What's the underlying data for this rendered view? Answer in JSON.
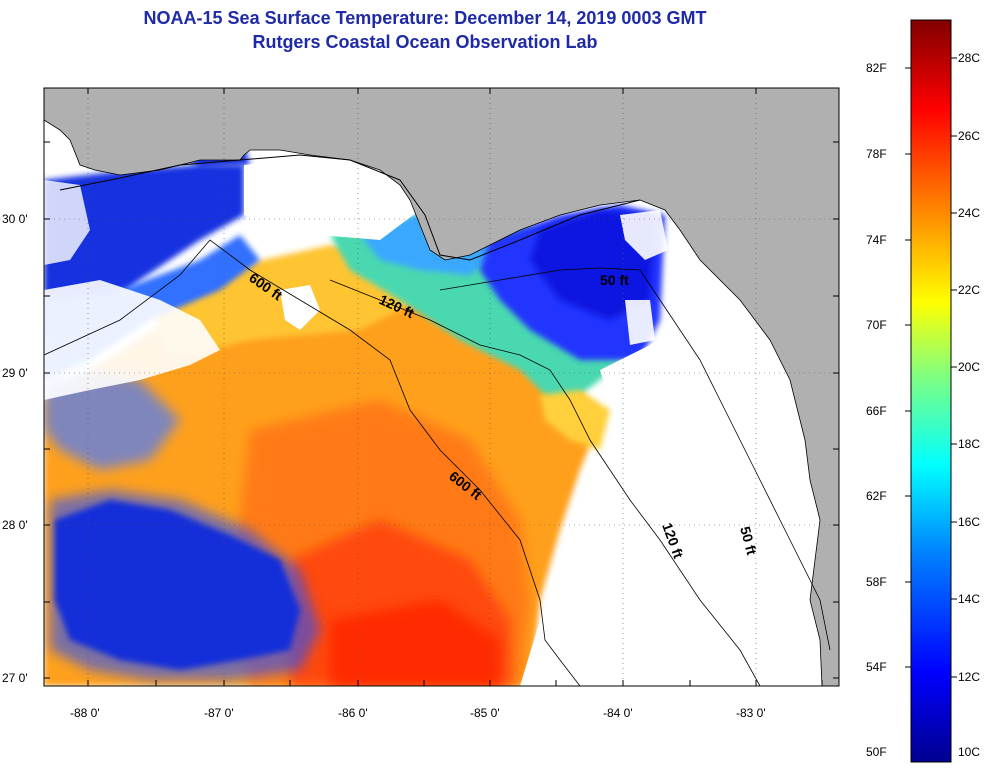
{
  "title": {
    "line1": "NOAA-15 Sea Surface Temperature:  December 14, 2019 0003 GMT",
    "line2": "Rutgers Coastal Ocean Observation Lab"
  },
  "axes": {
    "lat_labels": [
      "30 0'",
      "29 0'",
      "28 0'",
      "27 0'"
    ],
    "lon_labels": [
      "-88 0'",
      "-87 0'",
      "-86 0'",
      "-85 0'",
      "-84 0'",
      "-83 0'"
    ]
  },
  "contours": [
    {
      "label": "600 ft",
      "label2": "600 ft"
    },
    {
      "label": "120 ft",
      "label2": "120 ft"
    },
    {
      "label": "50 ft",
      "label2": "50 ft"
    }
  ],
  "colorbar": {
    "fahrenheit": [
      "82F",
      "78F",
      "74F",
      "70F",
      "66F",
      "62F",
      "58F",
      "54F",
      "50F"
    ],
    "celsius": [
      "28C",
      "26C",
      "24C",
      "22C",
      "20C",
      "18C",
      "16C",
      "14C",
      "12C",
      "10C"
    ]
  },
  "colors": {
    "land": "#b0b0b0",
    "cloud": "#ffffff",
    "deep_blue": "#0a0e9a",
    "title": "#1f2aa6"
  }
}
